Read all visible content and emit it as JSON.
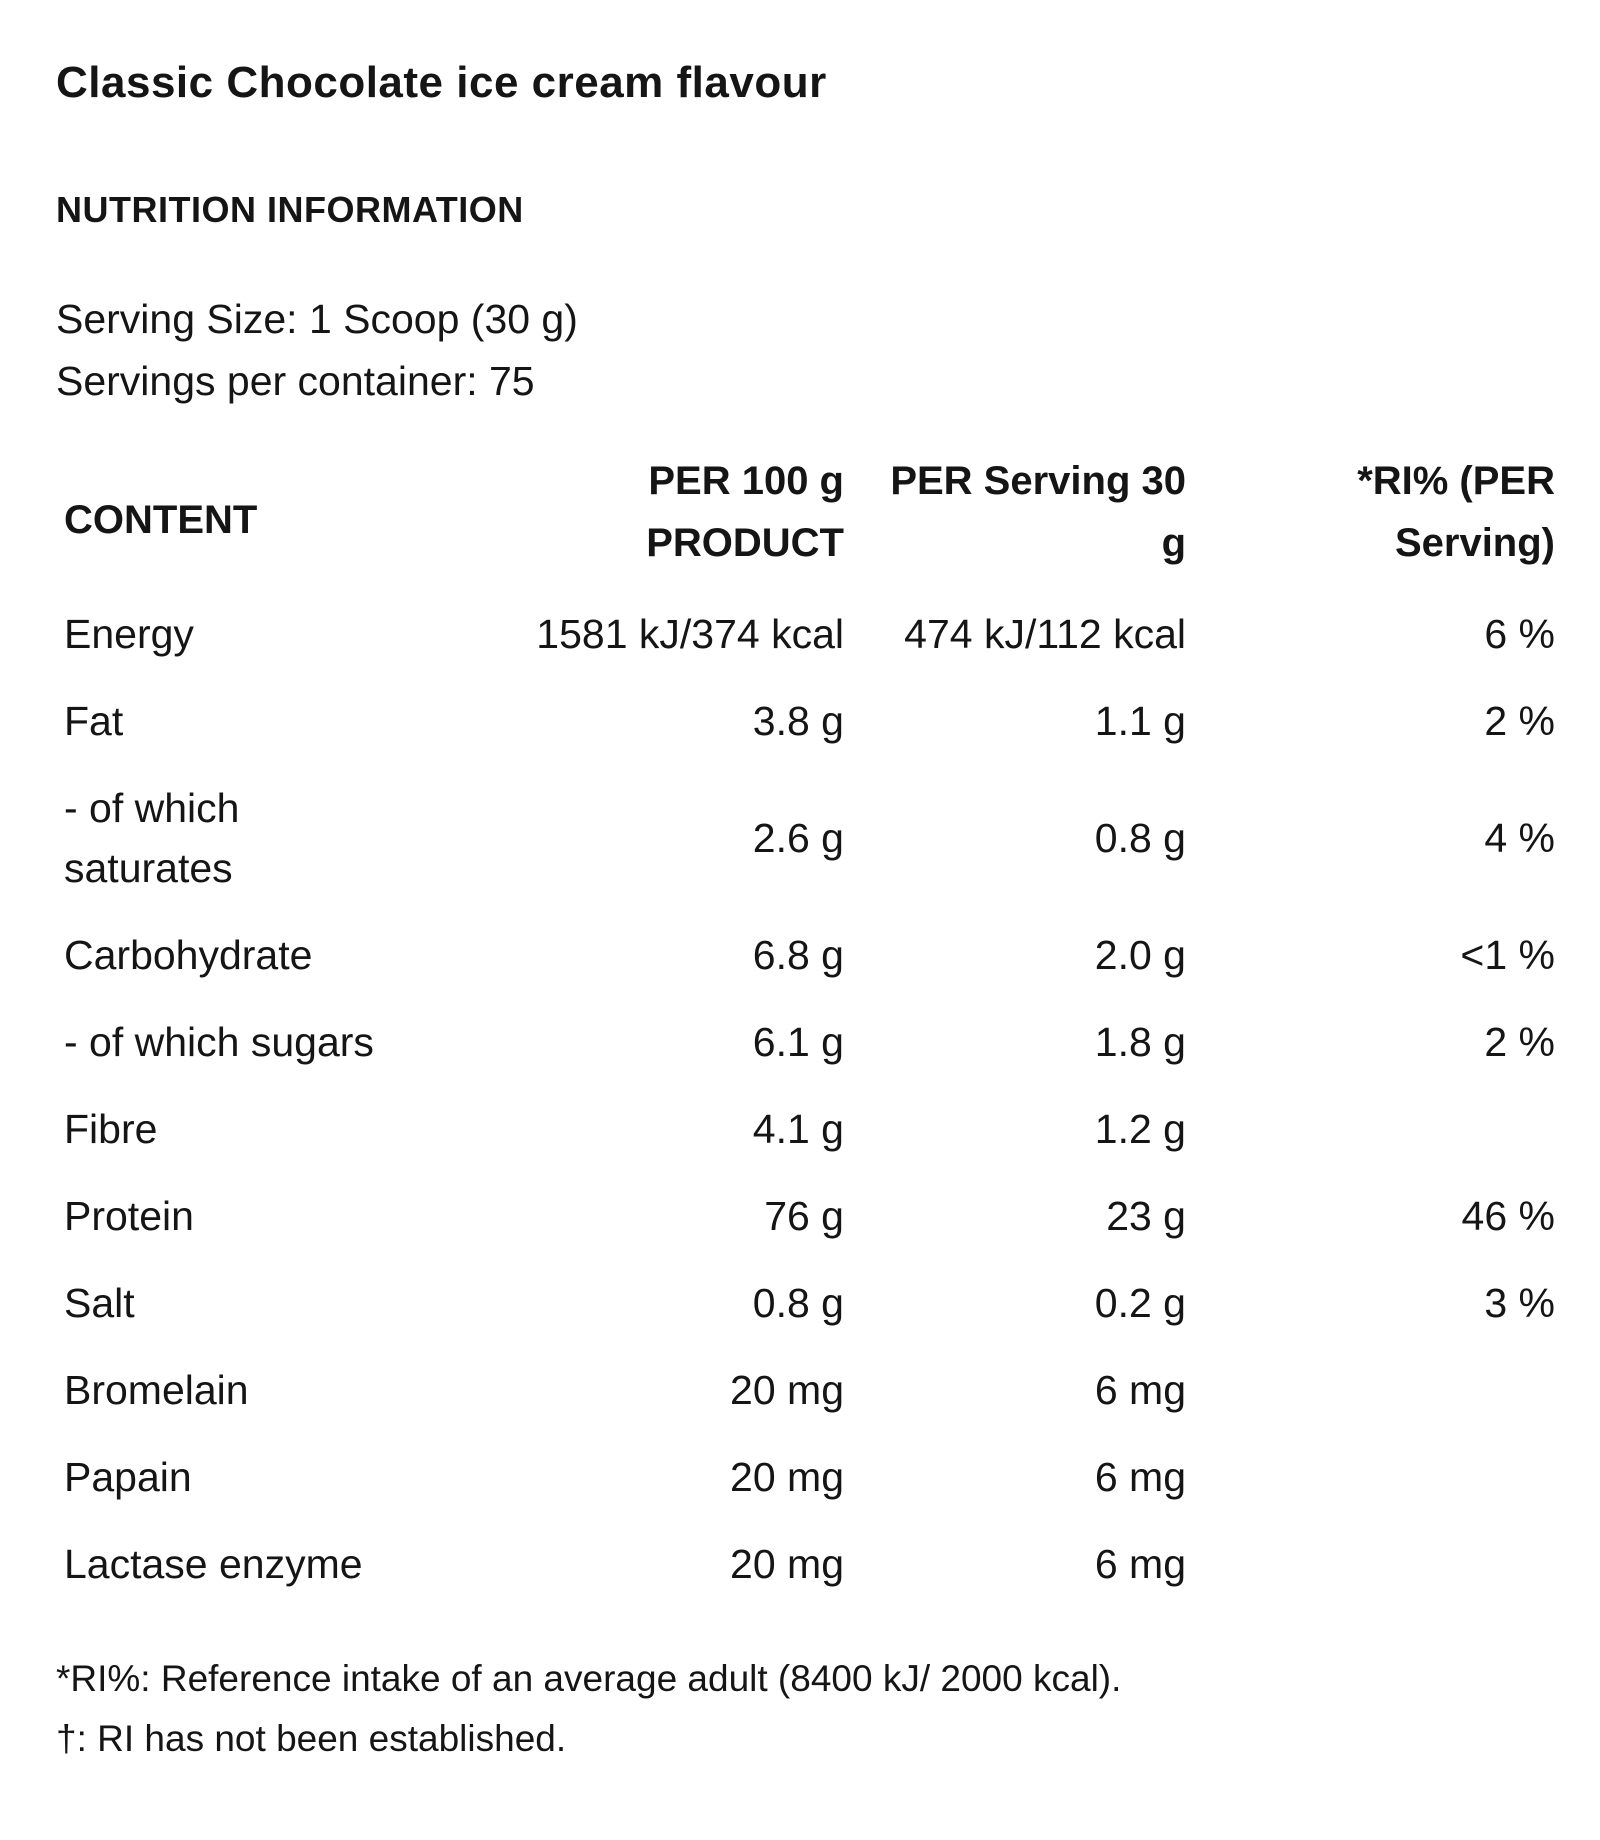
{
  "page": {
    "title": "Classic Chocolate ice cream flavour",
    "section_heading": "NUTRITION INFORMATION",
    "serving": {
      "size_line": "Serving Size: 1 Scoop (30 g)",
      "per_container_line": "Servings per container: 75"
    },
    "table": {
      "headers": {
        "content": "CONTENT",
        "per_100g": "PER 100 g\nPRODUCT",
        "per_serving": "PER Serving 30\ng",
        "ri_percent": "*RI% (PER\nServing)"
      },
      "rows": [
        {
          "label": "Energy",
          "per_100g": "1581 kJ/374 kcal",
          "per_serving": "474 kJ/112 kcal",
          "ri": "6 %"
        },
        {
          "label": "Fat",
          "per_100g": "3.8 g",
          "per_serving": "1.1 g",
          "ri": "2 %"
        },
        {
          "label": "- of which\nsaturates",
          "per_100g": "2.6 g",
          "per_serving": "0.8 g",
          "ri": "4 %"
        },
        {
          "label": "Carbohydrate",
          "per_100g": "6.8 g",
          "per_serving": "2.0 g",
          "ri": "<1 %"
        },
        {
          "label": "- of which sugars",
          "per_100g": "6.1 g",
          "per_serving": "1.8 g",
          "ri": "2 %"
        },
        {
          "label": "Fibre",
          "per_100g": "4.1 g",
          "per_serving": "1.2 g",
          "ri": ""
        },
        {
          "label": "Protein",
          "per_100g": "76 g",
          "per_serving": "23 g",
          "ri": "46 %"
        },
        {
          "label": "Salt",
          "per_100g": "0.8 g",
          "per_serving": "0.2 g",
          "ri": "3 %"
        },
        {
          "label": "Bromelain",
          "per_100g": "20 mg",
          "per_serving": "6 mg",
          "ri": ""
        },
        {
          "label": "Papain",
          "per_100g": "20 mg",
          "per_serving": "6 mg",
          "ri": ""
        },
        {
          "label": "Lactase enzyme",
          "per_100g": "20 mg",
          "per_serving": "6 mg",
          "ri": ""
        }
      ]
    },
    "footnotes": {
      "ri_note": "*RI%: Reference intake of an average adult (8400 kJ/ 2000 kcal).",
      "dagger_note": "†: RI has not been established."
    },
    "colors": {
      "text": "#151515",
      "background": "#ffffff"
    }
  }
}
